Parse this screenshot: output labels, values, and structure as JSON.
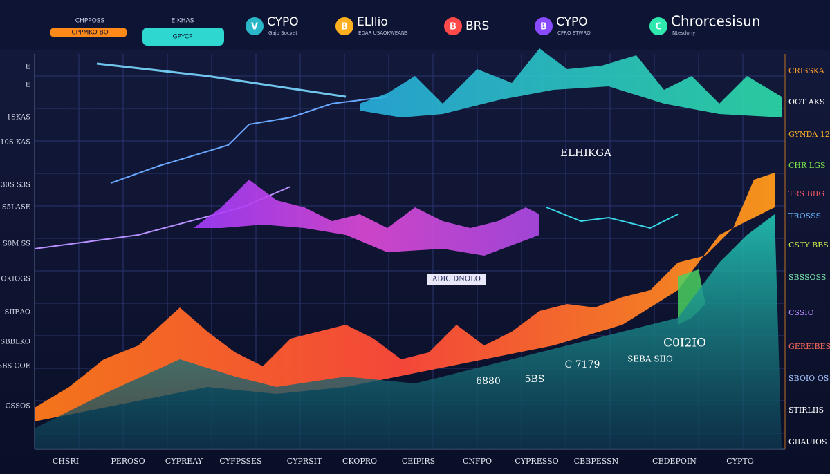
{
  "header": {
    "buttons": [
      {
        "caption": "CHPPOSS",
        "label": "CPPMKO BO"
      },
      {
        "caption": "EIKHAS",
        "label": "GPYCP"
      }
    ],
    "brands": [
      {
        "name": "CYPO",
        "sub": "Gajo Socyet",
        "icon": "V"
      },
      {
        "name": "ELllio",
        "sub": "EDAR USAOKWEANS",
        "icon": "B"
      },
      {
        "name": "BRS",
        "sub": "",
        "icon": "B"
      },
      {
        "name": "CYPO",
        "sub": "CPRO ETWRO",
        "icon": "B"
      },
      {
        "name": "Chrorcesisun",
        "sub": "Ntesdony",
        "icon": "C"
      }
    ]
  },
  "left_labels": [
    "E",
    "E",
    "1SKAS",
    "10S KAS",
    "30S S3S",
    "S5LASE",
    "S0M SS",
    "OKIOGS",
    "SIIEAO",
    "SBBLKO",
    "SBS GOE",
    "GSSOS"
  ],
  "right_labels": [
    "CRISSKA",
    "OOT AKS",
    "GYNDA 12",
    "CHR LGS",
    "TRS BIIG",
    "TROSSS",
    "CSTY BBS",
    "SBSSOSS",
    "CSSIO",
    "GEREIBES",
    "SBOIO OS",
    "STIRLIIS",
    "GIIAUIOS"
  ],
  "bottom_labels": [
    "CHSRI",
    "PEROSO",
    "CYPREAY",
    "CYFPSSES",
    "CYPRSIT",
    "CKOPRO",
    "CEIPIRS",
    "CNFPO",
    "CYPRESSO",
    "CBBPESSN",
    "CEDEPOIN",
    "CYPTO"
  ],
  "annotations": [
    "ELHIKGA",
    "ADIC DNOLO",
    "6880",
    "5BS",
    "C 7179",
    "SEBA SIIO",
    "C0I2IO"
  ]
}
